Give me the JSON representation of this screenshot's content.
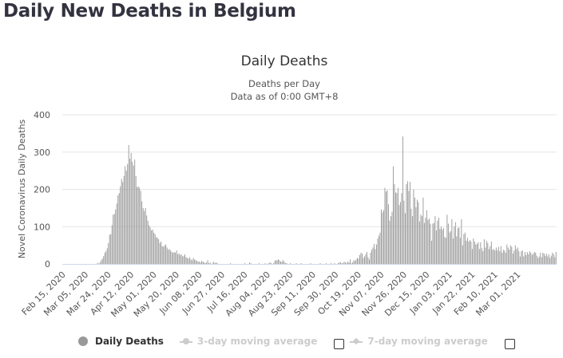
{
  "page": {
    "title": "Daily New Deaths in Belgium"
  },
  "legend": {
    "items": [
      {
        "label": "Daily Deaths",
        "active": true,
        "icon": "circle-marker-icon"
      },
      {
        "label": "3-day moving average",
        "active": false,
        "icon": "line-circle-marker-icon",
        "checkbox_checked": false
      },
      {
        "label": "7-day moving average",
        "active": false,
        "icon": "line-diamond-marker-icon",
        "checkbox_checked": false
      }
    ]
  },
  "colors": {
    "bar": "#999999",
    "grid": "#e6e6e6",
    "axis": "#ccd6eb",
    "legend_inactive": "#cccccc"
  },
  "chart_data": {
    "type": "bar",
    "title": "Daily Deaths",
    "subtitle_lines": [
      "Deaths per Day",
      "Data as of 0:00 GMT+8"
    ],
    "ylabel": "Novel Coronavirus Daily Deaths",
    "xlabel": "",
    "ylim": [
      0,
      400
    ],
    "yticks": [
      0,
      100,
      200,
      300,
      400
    ],
    "grid": true,
    "legend_position": "bottom",
    "x_start": "Feb 15, 2020",
    "x_tick_interval_days": 19,
    "xticks": [
      "Feb 15, 2020",
      "Mar 05, 2020",
      "Mar 24, 2020",
      "Apr 12, 2020",
      "May 01, 2020",
      "May 20, 2020",
      "Jun 08, 2020",
      "Jun 27, 2020",
      "Jul 16, 2020",
      "Aug 04, 2020",
      "Aug 23, 2020",
      "Sep 11, 2020",
      "Sep 30, 2020",
      "Oct 19, 2020",
      "Nov 07, 2020",
      "Nov 26, 2020",
      "Dec 15, 2020",
      "Jan 03, 2021",
      "Jan 22, 2021",
      "Feb 10, 2021",
      "Mar 01, 2021"
    ],
    "series": [
      {
        "name": "Daily Deaths",
        "values": [
          0,
          0,
          0,
          0,
          0,
          0,
          0,
          0,
          0,
          0,
          0,
          0,
          0,
          0,
          0,
          0,
          0,
          0,
          0,
          0,
          0,
          0,
          0,
          0,
          0,
          0,
          0,
          0,
          0,
          3,
          1,
          4,
          10,
          14,
          21,
          30,
          34,
          42,
          56,
          78,
          80,
          104,
          132,
          134,
          146,
          162,
          184,
          190,
          208,
          228,
          220,
          236,
          262,
          250,
          268,
          319,
          282,
          298,
          274,
          264,
          280,
          236,
          206,
          208,
          204,
          196,
          168,
          150,
          142,
          150,
          130,
          116,
          104,
          98,
          90,
          92,
          84,
          80,
          72,
          70,
          66,
          56,
          60,
          48,
          46,
          50,
          52,
          44,
          38,
          40,
          36,
          32,
          30,
          32,
          30,
          36,
          26,
          28,
          24,
          26,
          20,
          22,
          26,
          18,
          16,
          14,
          18,
          12,
          10,
          16,
          12,
          10,
          8,
          6,
          6,
          4,
          8,
          6,
          4,
          2,
          4,
          10,
          2,
          4,
          0,
          2,
          6,
          2,
          4,
          2,
          0,
          0,
          0,
          0,
          0,
          0,
          0,
          0,
          0,
          0,
          2,
          0,
          0,
          0,
          0,
          0,
          0,
          0,
          0,
          0,
          0,
          0,
          2,
          0,
          0,
          0,
          4,
          2,
          0,
          0,
          0,
          0,
          0,
          0,
          2,
          0,
          0,
          0,
          0,
          2,
          0,
          0,
          2,
          4,
          2,
          0,
          2,
          8,
          10,
          10,
          12,
          10,
          6,
          6,
          10,
          6,
          2,
          2,
          0,
          0,
          2,
          0,
          0,
          0,
          0,
          2,
          0,
          0,
          0,
          2,
          0,
          0,
          0,
          0,
          0,
          0,
          0,
          2,
          0,
          0,
          0,
          0,
          0,
          0,
          0,
          2,
          0,
          0,
          0,
          0,
          2,
          0,
          0,
          0,
          2,
          0,
          0,
          2,
          0,
          0,
          2,
          4,
          4,
          2,
          2,
          6,
          4,
          2,
          6,
          4,
          12,
          2,
          4,
          10,
          8,
          12,
          16,
          14,
          24,
          30,
          28,
          16,
          20,
          26,
          32,
          18,
          12,
          30,
          38,
          44,
          54,
          40,
          52,
          68,
          76,
          84,
          146,
          138,
          144,
          204,
          194,
          198,
          160,
          116,
          128,
          140,
          262,
          214,
          192,
          190,
          204,
          158,
          166,
          190,
          342,
          170,
          136,
          214,
          222,
          196,
          220,
          148,
          128,
          200,
          178,
          152,
          172,
          166,
          114,
          132,
          128,
          178,
          110,
          124,
          144,
          118,
          122,
          108,
          62,
          108,
          110,
          128,
          90,
          116,
          124,
          94,
          100,
          92,
          96,
          72,
          70,
          132,
          108,
          84,
          88,
          120,
          68,
          100,
          112,
          74,
          96,
          98,
          70,
          120,
          50,
          80,
          84,
          62,
          70,
          60,
          64,
          60,
          40,
          68,
          60,
          52,
          54,
          58,
          40,
          58,
          42,
          34,
          66,
          44,
          62,
          56,
          40,
          48,
          60,
          38,
          40,
          36,
          44,
          36,
          46,
          34,
          48,
          30,
          38,
          36,
          30,
          52,
          44,
          38,
          50,
          46,
          28,
          36,
          50,
          40,
          44,
          34,
          20,
          34,
          36,
          20,
          32,
          24,
          32,
          26,
          34,
          30,
          24,
          28,
          32,
          30,
          22,
          16,
          20,
          30,
          18,
          30,
          28,
          22,
          28,
          20,
          26,
          16,
          22,
          30,
          26,
          18,
          32
        ]
      }
    ]
  }
}
